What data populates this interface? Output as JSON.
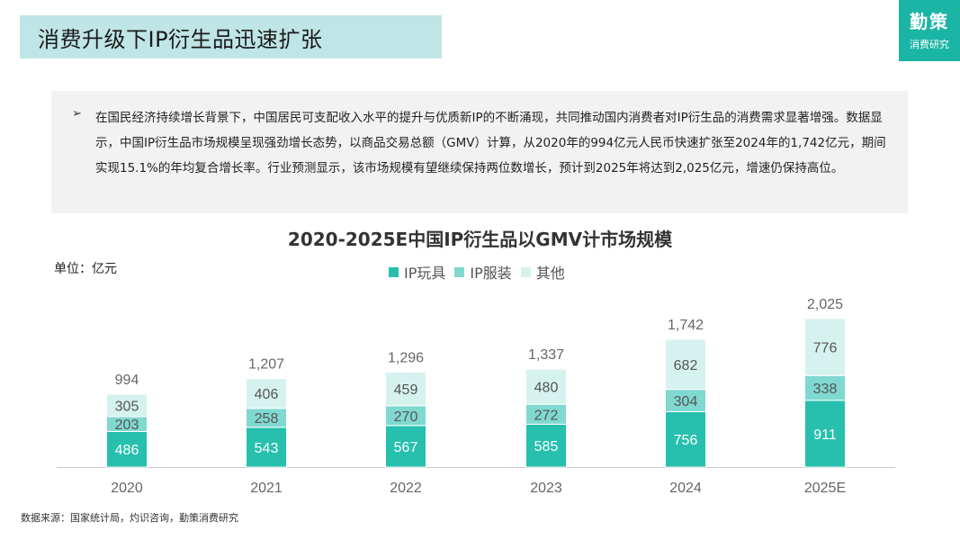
{
  "header": {
    "title": "消费升级下IP衍生品迅速扩张"
  },
  "brand": {
    "name": "勤策",
    "subtitle": "消费研究"
  },
  "summary": {
    "bullet": "➢",
    "text": "在国民经济持续增长背景下，中国居民可支配收入水平的提升与优质新IP的不断涌现，共同推动国内消费者对IP衍生品的消费需求显著增强。数据显示，中国IP衍生品市场规模呈现强劲增长态势，以商品交易总额（GMV）计算，从2020年的994亿元人民币快速扩张至2024年的1,742亿元，期间实现15.1%的年均复合增长率。行业预测显示，该市场规模有望继续保持两位数增长，预计到2025年将达到2,025亿元，增速仍保持高位。"
  },
  "chart_data": {
    "type": "bar",
    "stacked": true,
    "title": "2020-2025E中国IP衍生品以GMV计市场规模",
    "unit_label": "单位：亿元",
    "categories": [
      "2020",
      "2021",
      "2022",
      "2023",
      "2024",
      "2025E"
    ],
    "series": [
      {
        "name": "IP玩具",
        "values": [
          486,
          543,
          567,
          585,
          756,
          911
        ],
        "color": "#27bfae"
      },
      {
        "name": "IP服装",
        "values": [
          203,
          258,
          270,
          272,
          304,
          338
        ],
        "color": "#7fd9d1"
      },
      {
        "name": "其他",
        "values": [
          305,
          406,
          459,
          480,
          682,
          776
        ],
        "color": "#d6f2ef"
      }
    ],
    "totals": [
      "994",
      "1,207",
      "1,296",
      "1,337",
      "1,742",
      "2,025"
    ],
    "ylim": [
      0,
      2025
    ]
  },
  "source": "数据来源：国家统计局，灼识咨询，勤策消费研究"
}
